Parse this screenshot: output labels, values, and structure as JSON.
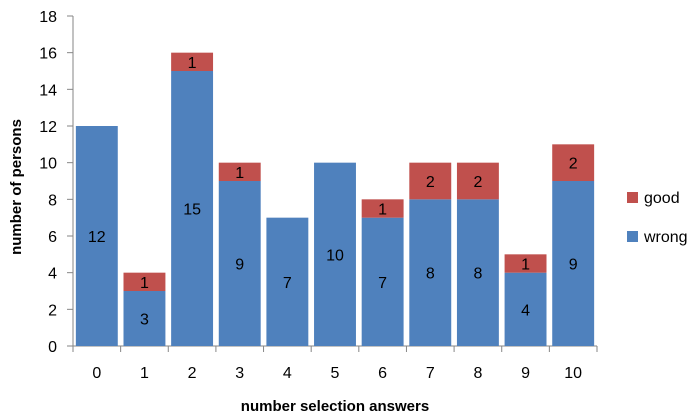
{
  "chart_data": {
    "type": "bar",
    "stacked": true,
    "categories": [
      "0",
      "1",
      "2",
      "3",
      "4",
      "5",
      "6",
      "7",
      "8",
      "9",
      "10"
    ],
    "series": [
      {
        "name": "wrong",
        "color": "#4f81bd",
        "values": [
          12,
          3,
          15,
          9,
          7,
          10,
          7,
          8,
          8,
          4,
          9
        ],
        "labels": [
          "12",
          "3",
          "15",
          "9",
          "7",
          "10",
          "7",
          "8",
          "8",
          "4",
          "9"
        ]
      },
      {
        "name": "good",
        "color": "#c0504d",
        "values": [
          0,
          1,
          1,
          1,
          0,
          0,
          1,
          2,
          2,
          1,
          2
        ],
        "labels": [
          "",
          "1",
          "1",
          "1",
          "",
          "",
          "1",
          "2",
          "2",
          "1",
          "2"
        ]
      }
    ],
    "xlabel": "number selection answers",
    "ylabel": "number of persons",
    "ylim": [
      0,
      18
    ],
    "yticks": [
      0,
      2,
      4,
      6,
      8,
      10,
      12,
      14,
      16,
      18
    ],
    "ytick_labels": [
      "0",
      "2",
      "4",
      "6",
      "8",
      "10",
      "12",
      "14",
      "16",
      "18"
    ],
    "grid": false,
    "legend_position": "right",
    "legend_order": [
      "good",
      "wrong"
    ]
  }
}
